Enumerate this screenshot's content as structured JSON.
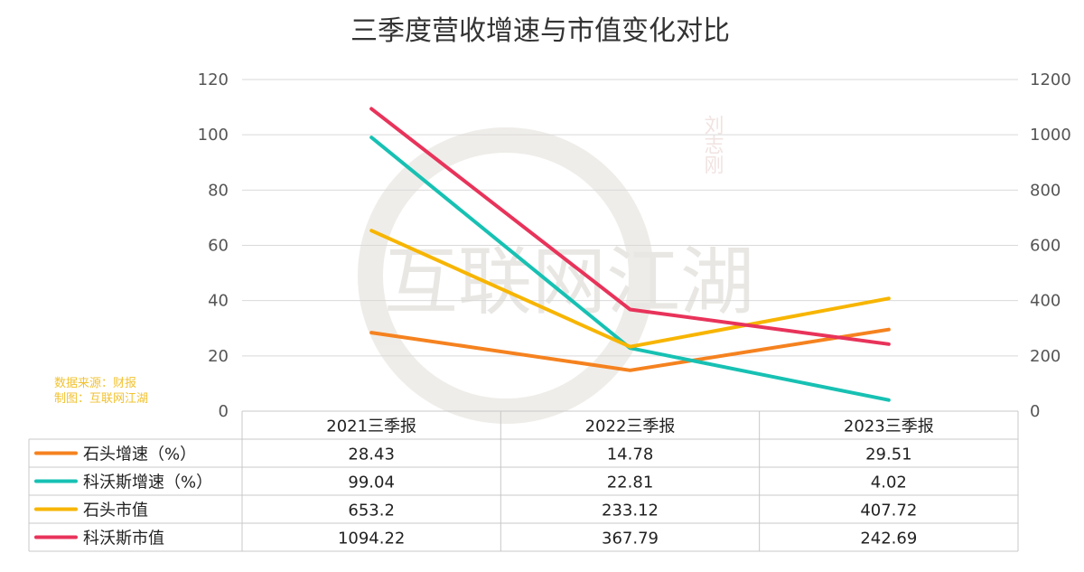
{
  "chart_data": {
    "type": "line",
    "title": "三季度营收增速与市值变化对比",
    "categories": [
      "2021三季报",
      "2022三季报",
      "2023三季报"
    ],
    "y_left": {
      "min": 0,
      "max": 120,
      "ticks": [
        "0",
        "20",
        "40",
        "60",
        "80",
        "100",
        "120"
      ]
    },
    "y_right": {
      "min": 0,
      "max": 1200,
      "ticks": [
        "0",
        "200",
        "400",
        "600",
        "800",
        "1000",
        "1200"
      ]
    },
    "grid": true,
    "legend": "data-table below chart",
    "series": [
      {
        "name": "石头增速（%）",
        "axis": "left",
        "color": "#f5821f",
        "values": [
          28.43,
          14.78,
          29.51
        ],
        "labels": [
          "28.43",
          "14.78",
          "29.51"
        ]
      },
      {
        "name": "科沃斯增速（%）",
        "axis": "left",
        "color": "#17c1b3",
        "values": [
          99.04,
          22.81,
          4.02
        ],
        "labels": [
          "99.04",
          "22.81",
          "4.02"
        ]
      },
      {
        "name": "石头市值",
        "axis": "right",
        "color": "#f7b500",
        "values": [
          653.2,
          233.12,
          407.72
        ],
        "labels": [
          "653.2",
          "233.12",
          "407.72"
        ]
      },
      {
        "name": "科沃斯市值",
        "axis": "right",
        "color": "#e8335a",
        "values": [
          1094.22,
          367.79,
          242.69
        ],
        "labels": [
          "1094.22",
          "367.79",
          "242.69"
        ]
      }
    ]
  },
  "source_note": {
    "line1": "数据来源：财报",
    "line2": "制图：互联网江湖"
  },
  "watermark": {
    "text": "互联网江湖",
    "stamp": "刘志刚"
  }
}
